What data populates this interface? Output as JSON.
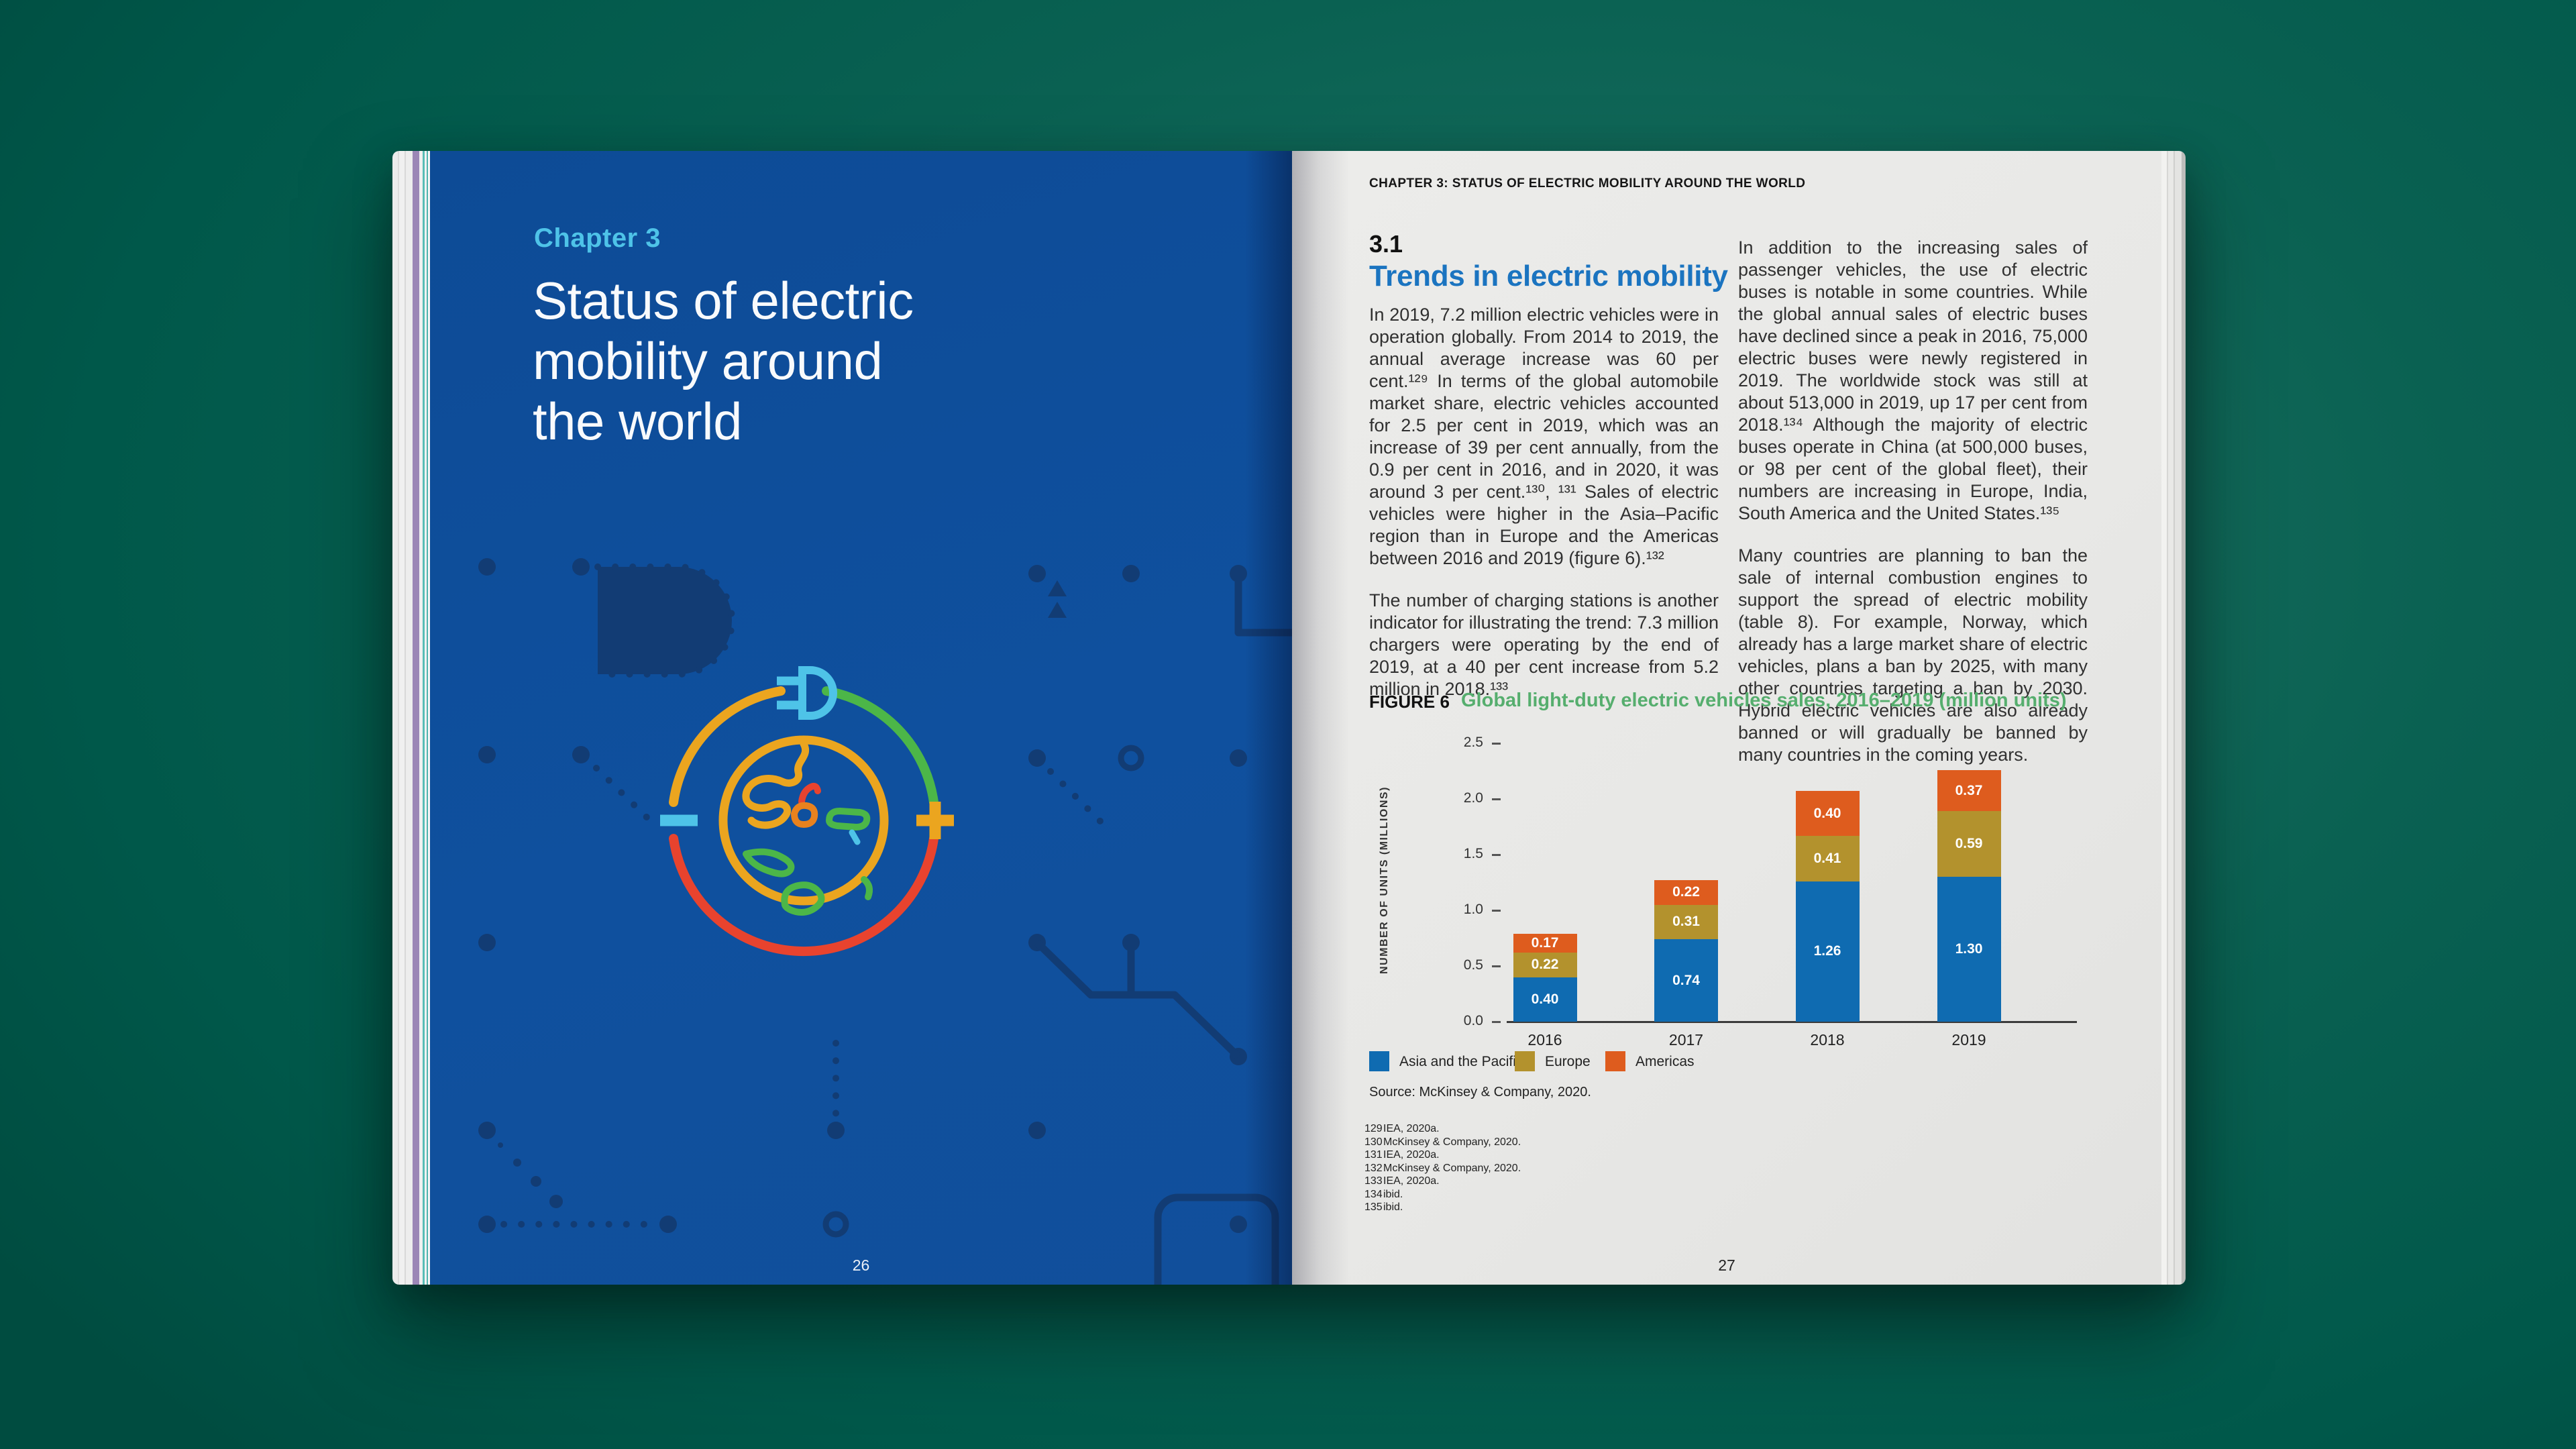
{
  "book": {
    "left_page": {
      "chapter_label": "Chapter 3",
      "title_lines": [
        "Status of electric",
        "mobility around",
        "the world"
      ],
      "page_number": "26"
    },
    "right_page": {
      "running_header": "CHAPTER 3: STATUS OF ELECTRIC MOBILITY AROUND THE WORLD",
      "section_number": "3.1",
      "section_title": "Trends in electric mobility",
      "col1_para1": "In 2019, 7.2 million electric vehicles were in operation globally. From 2014 to 2019, the annual average increase was 60 per cent.¹²⁹ In terms of the global automobile market share, electric vehicles accounted for 2.5 per cent in 2019, which was an increase of 39 per cent annually, from the 0.9 per cent in 2016, and in 2020, it was around 3 per cent.¹³⁰, ¹³¹ Sales of electric vehicles were higher in the Asia–Pacific region than in Europe and the Americas between 2016 and 2019 (figure 6).¹³²",
      "col1_para2": "The number of charging stations is another indicator for illustrating the trend: 7.3 million chargers were operating by the end of 2019, at a 40 per cent increase from 5.2 million in 2018.¹³³",
      "col2_para1": "In addition to the increasing sales of passenger vehicles, the use of electric buses is notable in some countries. While the global annual sales of electric buses have declined since a peak in 2016, 75,000 electric buses were newly registered in 2019. The worldwide stock was still at about 513,000 in 2019, up 17 per cent from 2018.¹³⁴ Although the majority of electric buses operate in China (at 500,000 buses, or 98 per cent of the global fleet), their numbers are increasing in Europe, India, South America and the United States.¹³⁵",
      "col2_para2": "Many countries are planning to ban the sale of internal combustion engines to support the spread of electric mobility (table 8). For example, Norway, which already has a large market share of electric vehicles, plans a ban by 2025, with many other countries targeting a ban by 2030. Hybrid electric vehicles are also already banned or will gradually be banned by many countries in the coming years.",
      "figure_label": "FIGURE 6",
      "source": "Source: McKinsey & Company, 2020.",
      "footnotes": [
        {
          "num": "129",
          "text": "IEA, 2020a."
        },
        {
          "num": "130",
          "text": "McKinsey & Company, 2020."
        },
        {
          "num": "131",
          "text": "IEA, 2020a."
        },
        {
          "num": "132",
          "text": "McKinsey & Company, 2020."
        },
        {
          "num": "133",
          "text": "IEA, 2020a."
        },
        {
          "num": "134",
          "text": "ibid."
        },
        {
          "num": "135",
          "text": "ibid."
        }
      ],
      "page_number": "27"
    }
  },
  "chart_data": {
    "type": "bar",
    "stacked": true,
    "title": "Global light-duty electric vehicles sales, 2016–2019 (million units)",
    "categories": [
      "2016",
      "2017",
      "2018",
      "2019"
    ],
    "series": [
      {
        "name": "Asia and the Pacific",
        "color": "#0F6BB1",
        "values": [
          0.4,
          0.74,
          1.26,
          1.3
        ]
      },
      {
        "name": "Europe",
        "color": "#B3922D",
        "values": [
          0.22,
          0.31,
          0.41,
          0.59
        ]
      },
      {
        "name": "Americas",
        "color": "#DE5C1E",
        "values": [
          0.17,
          0.22,
          0.4,
          0.37
        ]
      }
    ],
    "xlabel": "",
    "ylabel": "NUMBER OF UNITS (MILLIONS)",
    "ylim": [
      0,
      2.5
    ],
    "yticks": [
      "2.5",
      "2.0",
      "1.5",
      "1.0",
      "0.5",
      "0.0"
    ],
    "value_labels": true,
    "grid": false,
    "legend_position": "bottom"
  },
  "colors": {
    "background_green": "#00584A",
    "page_blue": "#0F509E",
    "chapter_label_cyan": "#4EC3E8",
    "heading_blue": "#1B74C0",
    "figure_title_green": "#56AE6E",
    "bar_blue": "#0F6BB1",
    "bar_gold": "#B3922D",
    "bar_orange": "#DE5C1E",
    "circuit_navy": "#123C74",
    "illustration_yellow": "#EBA51F",
    "illustration_green": "#4CB648",
    "illustration_red": "#E8432E"
  }
}
